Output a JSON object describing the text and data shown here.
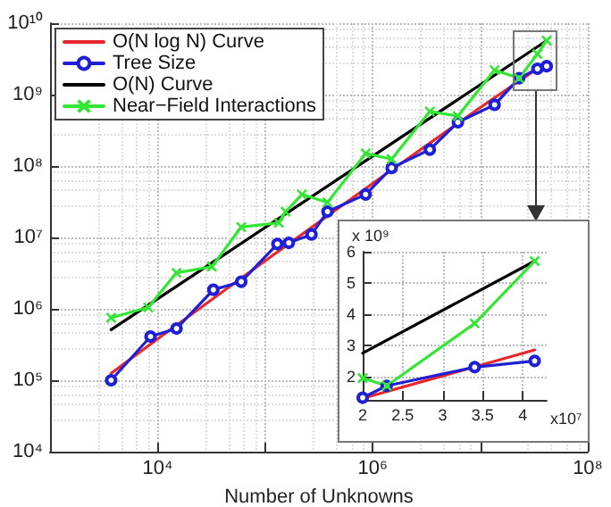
{
  "chart_data": [
    {
      "type": "line",
      "xlabel": "Number of Unknowns",
      "log": "xy",
      "grid": true,
      "legend": "top left",
      "xlim": [
        1000,
        100000000
      ],
      "ylim": [
        10000,
        10000000000
      ],
      "xticks": [
        {
          "value": 10000,
          "label": "10⁴"
        },
        {
          "value": 100000,
          "label": null
        },
        {
          "value": 1000000,
          "label": "10⁶"
        },
        {
          "value": 10000000,
          "label": null
        },
        {
          "value": 100000000,
          "label": "10⁸"
        }
      ],
      "yticks": [
        {
          "value": 10000,
          "label": "10⁴"
        },
        {
          "value": 100000,
          "label": "10⁵"
        },
        {
          "value": 1000000,
          "label": "10⁶"
        },
        {
          "value": 10000000,
          "label": "10⁷"
        },
        {
          "value": 100000000,
          "label": "10⁸"
        },
        {
          "value": 1000000000,
          "label": "10⁹"
        },
        {
          "value": 10000000000,
          "label": "10¹⁰"
        }
      ],
      "series": [
        {
          "name": "O(N log N) Curve",
          "color": "#e8262d",
          "marker": "none",
          "x": [
            3700,
            10000,
            100000,
            1000000,
            10000000,
            41500000
          ],
          "values": [
            125000,
            379000,
            4700000,
            57000000,
            660000000,
            2850000000
          ]
        },
        {
          "name": "Tree Size",
          "color": "#1f1fd6",
          "marker": "circle",
          "x": [
            3700,
            8600,
            15000,
            33000,
            60000,
            130000,
            166000,
            270000,
            380000,
            860000,
            1500000,
            3400000,
            6200000,
            13600000,
            23000000,
            34000000,
            41500000
          ],
          "values": [
            100000,
            410000,
            530000,
            1850000,
            2400000,
            8100000,
            8400000,
            11000000,
            23000000,
            40000000,
            94000000,
            170000000,
            410000000,
            720000000,
            1700000000,
            2300000000,
            2500000000
          ]
        },
        {
          "name": "O(N) Curve",
          "color": "#000000",
          "marker": "none",
          "x": [
            3700,
            41500000
          ],
          "values": [
            510000,
            5700000000
          ]
        },
        {
          "name": "Near−Field Interactions",
          "color": "#33e633",
          "marker": "cross",
          "x": [
            3700,
            8200,
            15000,
            32000,
            60000,
            134000,
            155000,
            220000,
            380000,
            860000,
            1500000,
            3400000,
            6200000,
            13600000,
            23000000,
            34000000,
            41500000
          ],
          "values": [
            750000,
            1050000,
            3200000,
            3900000,
            14000000,
            16000000,
            23000000,
            40000000,
            31000000,
            150000000,
            125000000,
            580000000,
            500000000,
            2200000000,
            1700000000,
            3700000000,
            5700000000
          ]
        }
      ]
    },
    {
      "type": "line",
      "xlabel": "x10⁷",
      "ylabel": "x 10⁹",
      "grid": true,
      "legend": false,
      "xlim": [
        2,
        4.3
      ],
      "ylim": [
        1.25,
        6
      ],
      "xticks": [
        2,
        2.5,
        3,
        3.5,
        4
      ],
      "yticks": [
        2,
        3,
        4,
        5,
        6
      ],
      "series": [
        {
          "color": "#e8262d",
          "marker": "none",
          "x": [
            2,
            4.15
          ],
          "values": [
            1.3,
            2.85
          ]
        },
        {
          "color": "#1f1fd6",
          "marker": "circle",
          "x": [
            2,
            2.3,
            3.4,
            4.15
          ],
          "values": [
            1.32,
            1.7,
            2.3,
            2.5
          ]
        },
        {
          "color": "#000000",
          "marker": "none",
          "x": [
            2,
            4.15
          ],
          "values": [
            2.75,
            5.7
          ]
        },
        {
          "color": "#33e633",
          "marker": "cross",
          "x": [
            2,
            2.3,
            3.4,
            4.15
          ],
          "values": [
            1.95,
            1.7,
            3.7,
            5.7
          ]
        }
      ]
    }
  ]
}
